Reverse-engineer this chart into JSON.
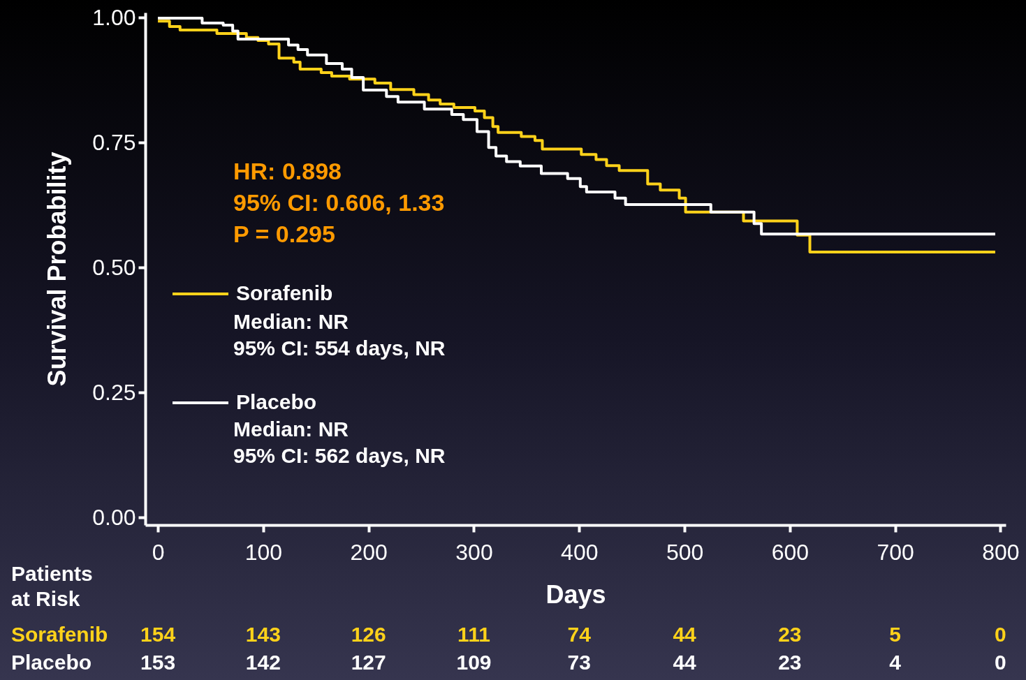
{
  "chart_data": [
    {
      "type": "step",
      "xlabel": "Days",
      "ylabel": "Survival Probability",
      "xlim": [
        -12,
        805
      ],
      "ylim": [
        -0.015,
        1.01
      ],
      "xticks": [
        0,
        100,
        200,
        300,
        400,
        500,
        600,
        700,
        800
      ],
      "yticks": [
        {
          "value": 0,
          "label": "0.00"
        },
        {
          "value": 0.25,
          "label": "0.25"
        },
        {
          "value": 0.5,
          "label": "0.50"
        },
        {
          "value": 0.75,
          "label": "0.75"
        },
        {
          "value": 1,
          "label": "1.00"
        }
      ],
      "legend": "left",
      "grid": false,
      "line_style": "solid",
      "marker": "none",
      "series": [
        {
          "name": "Sorafenib",
          "color": "#ffd21a",
          "x": [
            0,
            11,
            21,
            56,
            84,
            95,
            105,
            115,
            129,
            135,
            155,
            165,
            182,
            206,
            221,
            243,
            257,
            268,
            281,
            301,
            310,
            318,
            323,
            345,
            358,
            365,
            402,
            416,
            426,
            438,
            465,
            477,
            495,
            501,
            556,
            607,
            619,
            795
          ],
          "values": [
            0.993,
            0.982,
            0.975,
            0.968,
            0.96,
            0.954,
            0.947,
            0.919,
            0.911,
            0.897,
            0.89,
            0.883,
            0.877,
            0.869,
            0.856,
            0.846,
            0.835,
            0.827,
            0.82,
            0.813,
            0.8,
            0.782,
            0.77,
            0.762,
            0.754,
            0.737,
            0.726,
            0.716,
            0.704,
            0.694,
            0.667,
            0.655,
            0.639,
            0.611,
            0.593,
            0.565,
            0.531,
            0.531
          ]
        },
        {
          "name": "Placebo",
          "color": "#ffffff",
          "x": [
            0,
            42,
            62,
            71,
            76,
            124,
            133,
            142,
            160,
            175,
            184,
            195,
            217,
            228,
            253,
            279,
            290,
            303,
            314,
            321,
            331,
            344,
            364,
            389,
            401,
            407,
            434,
            444,
            525,
            566,
            573,
            795
          ],
          "values": [
            0.999,
            0.989,
            0.985,
            0.973,
            0.957,
            0.945,
            0.936,
            0.925,
            0.908,
            0.897,
            0.88,
            0.855,
            0.842,
            0.831,
            0.817,
            0.806,
            0.796,
            0.772,
            0.74,
            0.723,
            0.712,
            0.703,
            0.688,
            0.678,
            0.662,
            0.651,
            0.639,
            0.626,
            0.611,
            0.588,
            0.567,
            0.567
          ]
        }
      ],
      "annotations": [
        "HR: 0.898",
        "95% CI: 0.606, 1.33",
        "P = 0.295",
        "Median: NR",
        "95% CI: 554 days, NR",
        "Median: NR",
        "95% CI: 562 days, NR"
      ]
    },
    {
      "type": "other",
      "title": "Patients at Risk",
      "annotations": [
        "Sorafenib",
        "154",
        "143",
        "126",
        "111",
        "74",
        "44",
        "23",
        "5",
        "0",
        "Placebo",
        "153",
        "142",
        "127",
        "109",
        "73",
        "44",
        "23",
        "4",
        "0"
      ]
    }
  ]
}
